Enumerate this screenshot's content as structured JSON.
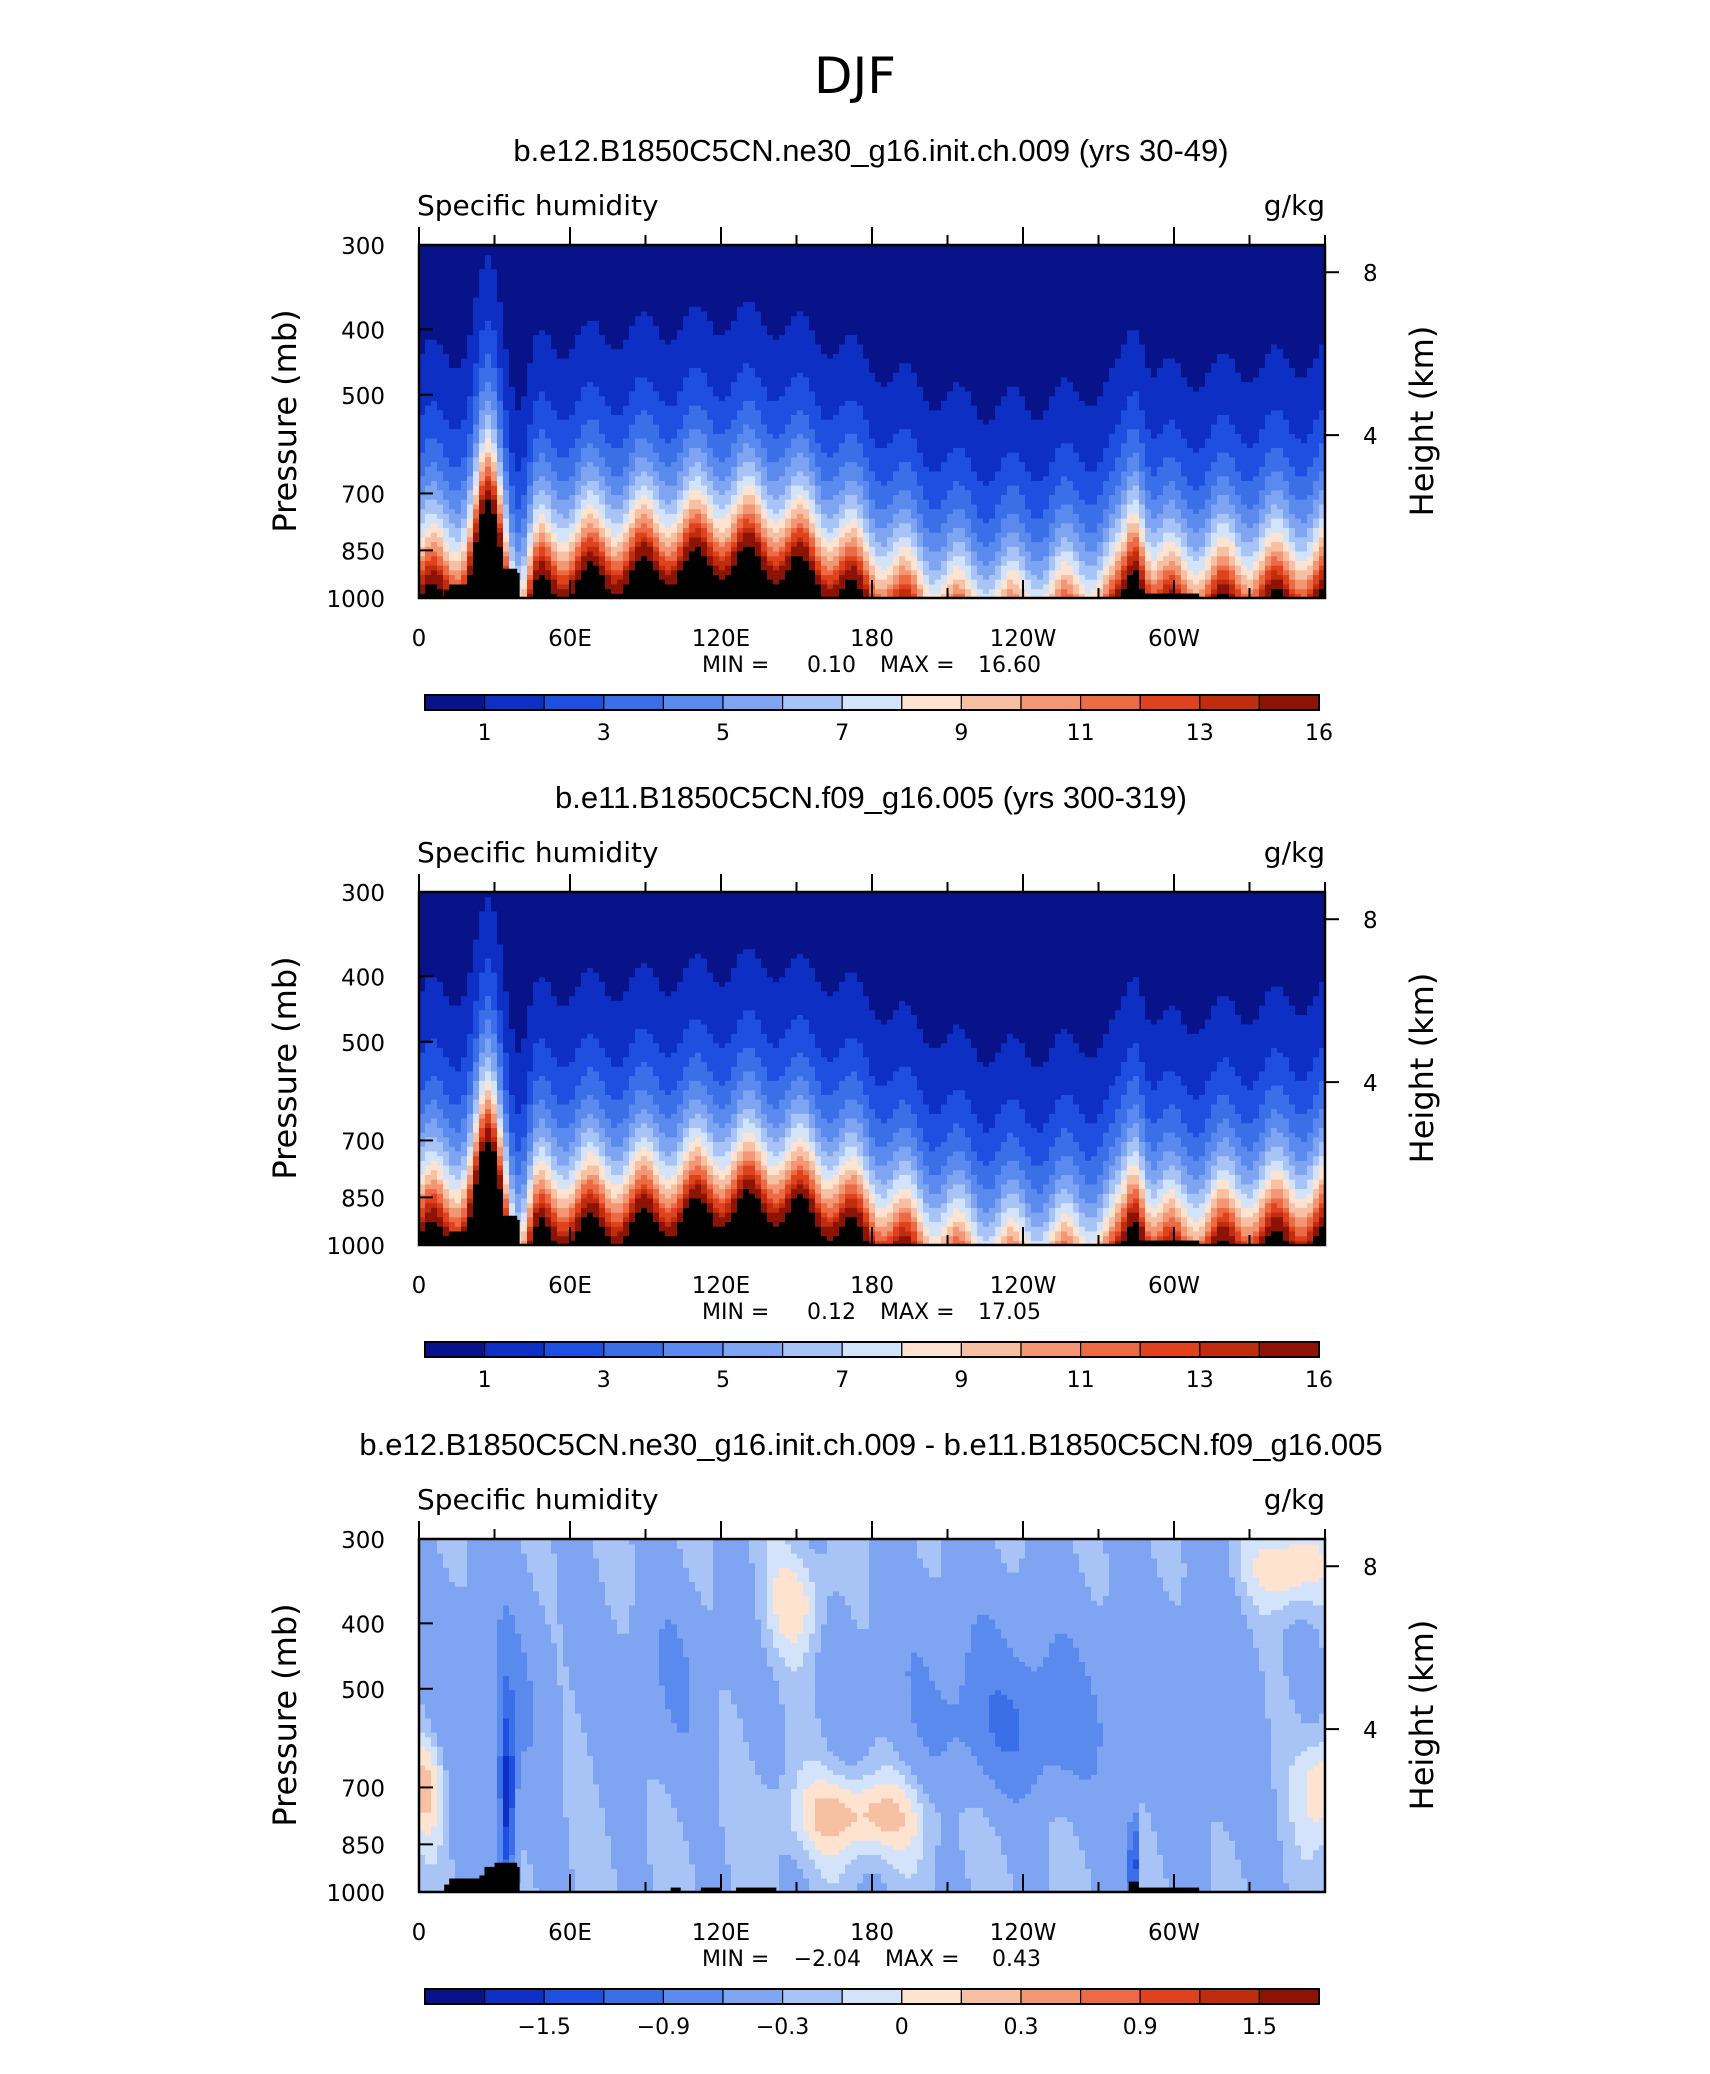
{
  "page_title": "DJF",
  "colors": {
    "seq_palette": [
      "#08138a",
      "#0d2fc4",
      "#1e4fe0",
      "#3a6fe8",
      "#5a8aee",
      "#7fa5f2",
      "#a8c3f6",
      "#d3e3fa",
      "#fde3d0",
      "#f8c0a3",
      "#f29674",
      "#ec6a44",
      "#e0421d",
      "#bf2c0e",
      "#8c1305"
    ],
    "diff_palette": [
      "#08138a",
      "#0d2fc4",
      "#1e4fe0",
      "#3a6fe8",
      "#5a8aee",
      "#7fa5f2",
      "#a8c3f6",
      "#d3e3fa",
      "#fde3d0",
      "#f8c0a3",
      "#f29674",
      "#ec6a44",
      "#e0421d",
      "#bf2c0e",
      "#8c1305"
    ],
    "terrain": "#000000"
  },
  "chart_data": [
    {
      "type": "heatmap",
      "title": "b.e12.B1850C5CN.ne30_g16.init.ch.009 (yrs 30-49)",
      "left_label": "Specific humidity",
      "right_label": "g/kg",
      "ylabel": "Pressure (mb)",
      "ylabel_right": "Height (km)",
      "y_ticks": [
        "300",
        "400",
        "500",
        "700",
        "850",
        "1000"
      ],
      "y_tick_values": [
        300,
        400,
        500,
        700,
        850,
        1000
      ],
      "ylim": [
        1000,
        300
      ],
      "y_right_ticks": [
        "8",
        "4"
      ],
      "x_ticks": [
        "0",
        "60E",
        "120E",
        "180",
        "120W",
        "60W"
      ],
      "x_tick_values": [
        0,
        60,
        120,
        180,
        240,
        300
      ],
      "xlim": [
        0,
        360
      ],
      "min_label": "MIN =",
      "min_value": "0.10",
      "max_label": "MAX =",
      "max_value": "16.60",
      "levels": [
        1,
        2,
        3,
        4,
        5,
        6,
        7,
        8,
        9,
        10,
        11,
        12,
        13,
        14,
        16
      ],
      "colorbar_labels": [
        "1",
        "3",
        "5",
        "7",
        "9",
        "11",
        "13",
        "16"
      ],
      "field": "humidity"
    },
    {
      "type": "heatmap",
      "title": "b.e11.B1850C5CN.f09_g16.005 (yrs 300-319)",
      "left_label": "Specific humidity",
      "right_label": "g/kg",
      "ylabel": "Pressure (mb)",
      "ylabel_right": "Height (km)",
      "y_ticks": [
        "300",
        "400",
        "500",
        "700",
        "850",
        "1000"
      ],
      "y_tick_values": [
        300,
        400,
        500,
        700,
        850,
        1000
      ],
      "ylim": [
        1000,
        300
      ],
      "y_right_ticks": [
        "8",
        "4"
      ],
      "x_ticks": [
        "0",
        "60E",
        "120E",
        "180",
        "120W",
        "60W"
      ],
      "x_tick_values": [
        0,
        60,
        120,
        180,
        240,
        300
      ],
      "xlim": [
        0,
        360
      ],
      "min_label": "MIN =",
      "min_value": "0.12",
      "max_label": "MAX =",
      "max_value": "17.05",
      "levels": [
        1,
        2,
        3,
        4,
        5,
        6,
        7,
        8,
        9,
        10,
        11,
        12,
        13,
        14,
        16
      ],
      "colorbar_labels": [
        "1",
        "3",
        "5",
        "7",
        "9",
        "11",
        "13",
        "16"
      ],
      "field": "humidity"
    },
    {
      "type": "heatmap",
      "title": "b.e12.B1850C5CN.ne30_g16.init.ch.009 - b.e11.B1850C5CN.f09_g16.005",
      "left_label": "Specific humidity",
      "right_label": "g/kg",
      "ylabel": "Pressure (mb)",
      "ylabel_right": "Height (km)",
      "y_ticks": [
        "300",
        "400",
        "500",
        "700",
        "850",
        "1000"
      ],
      "y_tick_values": [
        300,
        400,
        500,
        700,
        850,
        1000
      ],
      "ylim": [
        1000,
        300
      ],
      "y_right_ticks": [
        "8",
        "4"
      ],
      "x_ticks": [
        "0",
        "60E",
        "120E",
        "180",
        "120W",
        "60W"
      ],
      "x_tick_values": [
        0,
        60,
        120,
        180,
        240,
        300
      ],
      "xlim": [
        0,
        360
      ],
      "min_label": "MIN =",
      "min_value": "−2.04",
      "max_label": "MAX =",
      "max_value": "0.43",
      "levels": [
        -1.8,
        -1.5,
        -1.2,
        -0.9,
        -0.6,
        -0.3,
        -0.15,
        0,
        0.15,
        0.3,
        0.6,
        0.9,
        1.2,
        1.5,
        1.8
      ],
      "colorbar_labels": [
        "−1.5",
        "−0.9",
        "−0.3",
        "0",
        "0.3",
        "0.9",
        "1.5"
      ],
      "field": "difference"
    }
  ]
}
